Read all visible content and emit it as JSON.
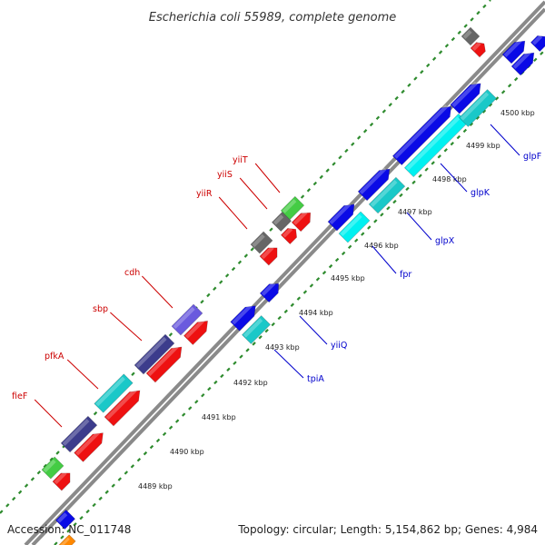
{
  "title": "Escherichia coli 55989, complete genome",
  "accession": "Accession: NC_011748",
  "summary": "Topology: circular; Length: 5,154,862 bp; Genes: 4,984",
  "colors": {
    "backbone": "#8a8a8a",
    "tick_line": "#2e8b2e",
    "forward_label": "#0000cc",
    "reverse_label": "#cc0000"
  },
  "ticks": [
    {
      "kbp": 4489,
      "label": "4489 kbp"
    },
    {
      "kbp": 4490,
      "label": "4490 kbp"
    },
    {
      "kbp": 4491,
      "label": "4491 kbp"
    },
    {
      "kbp": 4492,
      "label": "4492 kbp"
    },
    {
      "kbp": 4493,
      "label": "4493 kbp"
    },
    {
      "kbp": 4494,
      "label": "4494 kbp"
    },
    {
      "kbp": 4495,
      "label": "4495 kbp"
    },
    {
      "kbp": 4496,
      "label": "4496 kbp"
    },
    {
      "kbp": 4497,
      "label": "4497 kbp"
    },
    {
      "kbp": 4498,
      "label": "4498 kbp"
    },
    {
      "kbp": 4499,
      "label": "4499 kbp"
    },
    {
      "kbp": 4500,
      "label": "4500 kbp"
    }
  ],
  "forward_genes": [
    {
      "name": "fpr"
    },
    {
      "name": "glpX"
    },
    {
      "name": "glpK"
    },
    {
      "name": "glpF"
    },
    {
      "name": "yiiQ"
    },
    {
      "name": "tpiA"
    }
  ],
  "reverse_genes": [
    {
      "name": "fieF"
    },
    {
      "name": "pfkA"
    },
    {
      "name": "sbp"
    },
    {
      "name": "cdh"
    },
    {
      "name": "yiiR"
    },
    {
      "name": "yiiS"
    },
    {
      "name": "yiiT"
    }
  ]
}
